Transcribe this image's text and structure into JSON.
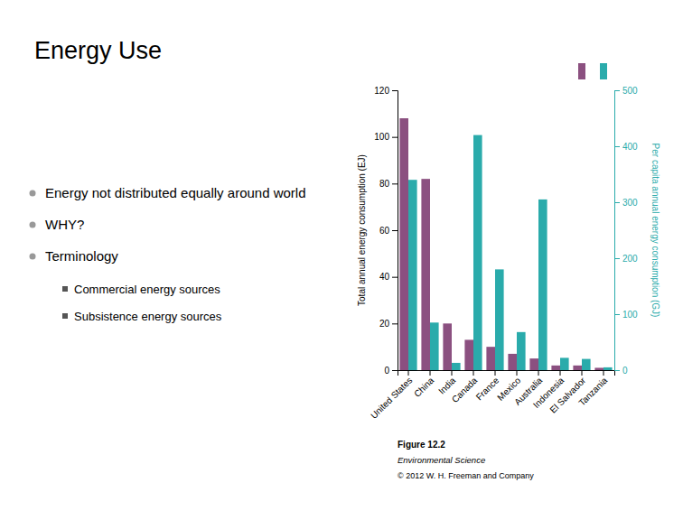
{
  "chart_data": {
    "type": "bar",
    "title": "Energy Use",
    "annotations": {
      "bullets": [
        "Energy not distributed equally around world",
        "WHY?",
        "Terminology"
      ],
      "sub_bullets": [
        "Commercial energy sources",
        "Subsistence energy sources"
      ],
      "caption": [
        "Figure 12.2",
        "Environmental Science",
        "© 2012 W. H. Freeman and Company"
      ]
    },
    "categories": [
      "United States",
      "China",
      "India",
      "Canada",
      "France",
      "Mexico",
      "Australia",
      "Indonesia",
      "El Salvador",
      "Tanzania"
    ],
    "series": [
      {
        "color": "#8B5080",
        "values": [
          108,
          82,
          20,
          13,
          10,
          7,
          5,
          2,
          2,
          1
        ]
      },
      {
        "color": "#2AABAB",
        "values": [
          340,
          85,
          13,
          420,
          180,
          68,
          305,
          22,
          20,
          5
        ],
        "axis": "y2"
      }
    ],
    "ylabel": "Total annual energy consumption (EJ)",
    "y2label": "Per capita annual energy consumption (GJ)",
    "ylim": [
      0,
      120
    ],
    "yticks": [
      0,
      20,
      40,
      60,
      80,
      100,
      120
    ],
    "y2lim": [
      0,
      500
    ],
    "y2ticks": [
      0,
      100,
      200,
      300,
      400,
      500
    ],
    "grid": false
  }
}
